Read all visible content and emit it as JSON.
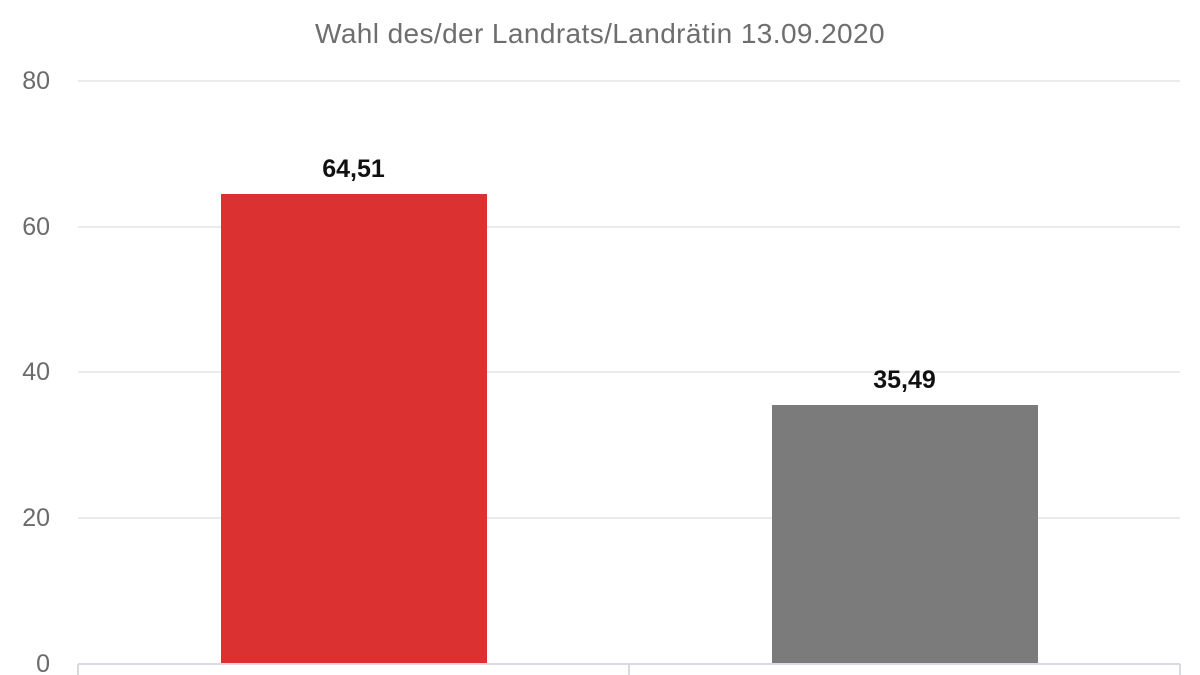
{
  "chart_data": {
    "type": "bar",
    "title": "Wahl des/der Landrats/Landrätin 13.09.2020",
    "categories": [
      "",
      ""
    ],
    "values": [
      64.51,
      35.49
    ],
    "value_labels": [
      "64,51",
      "35,49"
    ],
    "bar_colors": [
      "#db3131",
      "#7b7b7b"
    ],
    "ylim": [
      0,
      80
    ],
    "yticks": [
      0,
      20,
      40,
      60,
      80
    ],
    "ytick_labels": [
      "0",
      "20",
      "40",
      "60",
      "80"
    ],
    "grid": true,
    "legend": false,
    "value_label_position": "above-bar",
    "colors": {
      "grid_line": "#ebebeb",
      "axis_line": "#d7dae1",
      "title_text": "#6e6e6e",
      "tick_text": "#6b6b6b",
      "value_text": "#111111",
      "background": "#ffffff"
    }
  }
}
